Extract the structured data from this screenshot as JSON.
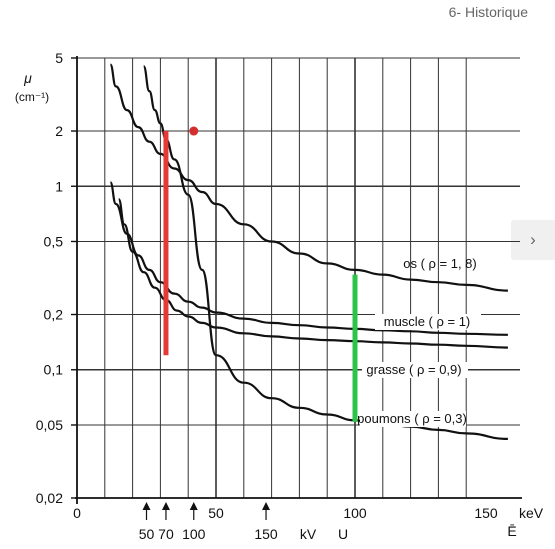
{
  "header": {
    "title": "6- Historique"
  },
  "nav": {
    "next_icon": "chevron-right-icon"
  },
  "chart_data": {
    "type": "line",
    "yscale": "log",
    "ylim": [
      0.02,
      5
    ],
    "xlim": [
      0,
      160
    ],
    "y_ticks": [
      {
        "value": 5,
        "label": "5"
      },
      {
        "value": 2,
        "label": "2"
      },
      {
        "value": 1,
        "label": "1"
      },
      {
        "value": 0.5,
        "label": "0,5"
      },
      {
        "value": 0.2,
        "label": "0,2"
      },
      {
        "value": 0.1,
        "label": "0,1"
      },
      {
        "value": 0.05,
        "label": "0,05"
      },
      {
        "value": 0.02,
        "label": "0,02"
      }
    ],
    "x_ticks": [
      {
        "value": 0,
        "label": "0"
      },
      {
        "value": 50,
        "label": "50"
      },
      {
        "value": 100,
        "label": "100"
      },
      {
        "value": 150,
        "label": "150"
      }
    ],
    "x_unit": "keV",
    "x_symbol": "Ē",
    "y_symbol": "μ",
    "y_unit": "(cm⁻¹)",
    "voltage_labels": [
      {
        "value": 25,
        "label": "50"
      },
      {
        "value": 32,
        "label": "70"
      },
      {
        "value": 42,
        "label": "100"
      },
      {
        "value": 68,
        "label": "150"
      }
    ],
    "voltage_unit": "kV",
    "voltage_symbol": "U",
    "series": [
      {
        "name": "os ( ρ = 1, 8)",
        "x": [
          12,
          14,
          18,
          22,
          26,
          30,
          35,
          40,
          45,
          50,
          60,
          70,
          80,
          90,
          100,
          110,
          120,
          130,
          140,
          155
        ],
        "y": [
          4.6,
          3.5,
          2.6,
          2.1,
          1.75,
          1.5,
          1.25,
          1.08,
          0.93,
          0.8,
          0.62,
          0.5,
          0.43,
          0.38,
          0.35,
          0.33,
          0.31,
          0.3,
          0.29,
          0.27
        ]
      },
      {
        "name": "muscle ( ρ = 1)",
        "x": [
          12,
          14,
          18,
          22,
          26,
          30,
          35,
          40,
          45,
          50,
          60,
          70,
          80,
          90,
          100,
          110,
          120,
          130,
          140,
          155
        ],
        "y": [
          1.05,
          0.8,
          0.55,
          0.42,
          0.35,
          0.3,
          0.26,
          0.235,
          0.218,
          0.205,
          0.19,
          0.18,
          0.175,
          0.17,
          0.167,
          0.164,
          0.162,
          0.159,
          0.157,
          0.155
        ]
      },
      {
        "name": "grasse ( ρ = 0,9)",
        "x": [
          15,
          17,
          20,
          24,
          28,
          32,
          36,
          40,
          45,
          50,
          60,
          70,
          80,
          90,
          100,
          110,
          120,
          130,
          140,
          155
        ],
        "y": [
          0.85,
          0.62,
          0.44,
          0.34,
          0.28,
          0.24,
          0.21,
          0.195,
          0.18,
          0.17,
          0.158,
          0.152,
          0.148,
          0.145,
          0.143,
          0.141,
          0.139,
          0.137,
          0.135,
          0.132
        ]
      },
      {
        "name": "poumons ( ρ = 0,3)",
        "x": [
          24,
          26,
          28,
          30,
          32,
          35,
          40,
          45,
          50,
          60,
          70,
          80,
          90,
          100,
          110,
          120,
          130,
          140,
          155
        ],
        "y": [
          4.5,
          3.3,
          2.6,
          2.2,
          1.8,
          1.4,
          0.9,
          0.35,
          0.12,
          0.085,
          0.07,
          0.062,
          0.057,
          0.053,
          0.051,
          0.049,
          0.047,
          0.045,
          0.042
        ]
      }
    ],
    "markers": [
      {
        "type": "segment",
        "color": "#e53935",
        "x": 32,
        "y_from": 0.12,
        "y_to": 2
      },
      {
        "type": "segment",
        "color": "#2ec44a",
        "x": 100,
        "y_from": 0.052,
        "y_to": 0.33
      },
      {
        "type": "point",
        "color": "#d32f2f",
        "x": 42,
        "y": 2
      }
    ]
  }
}
